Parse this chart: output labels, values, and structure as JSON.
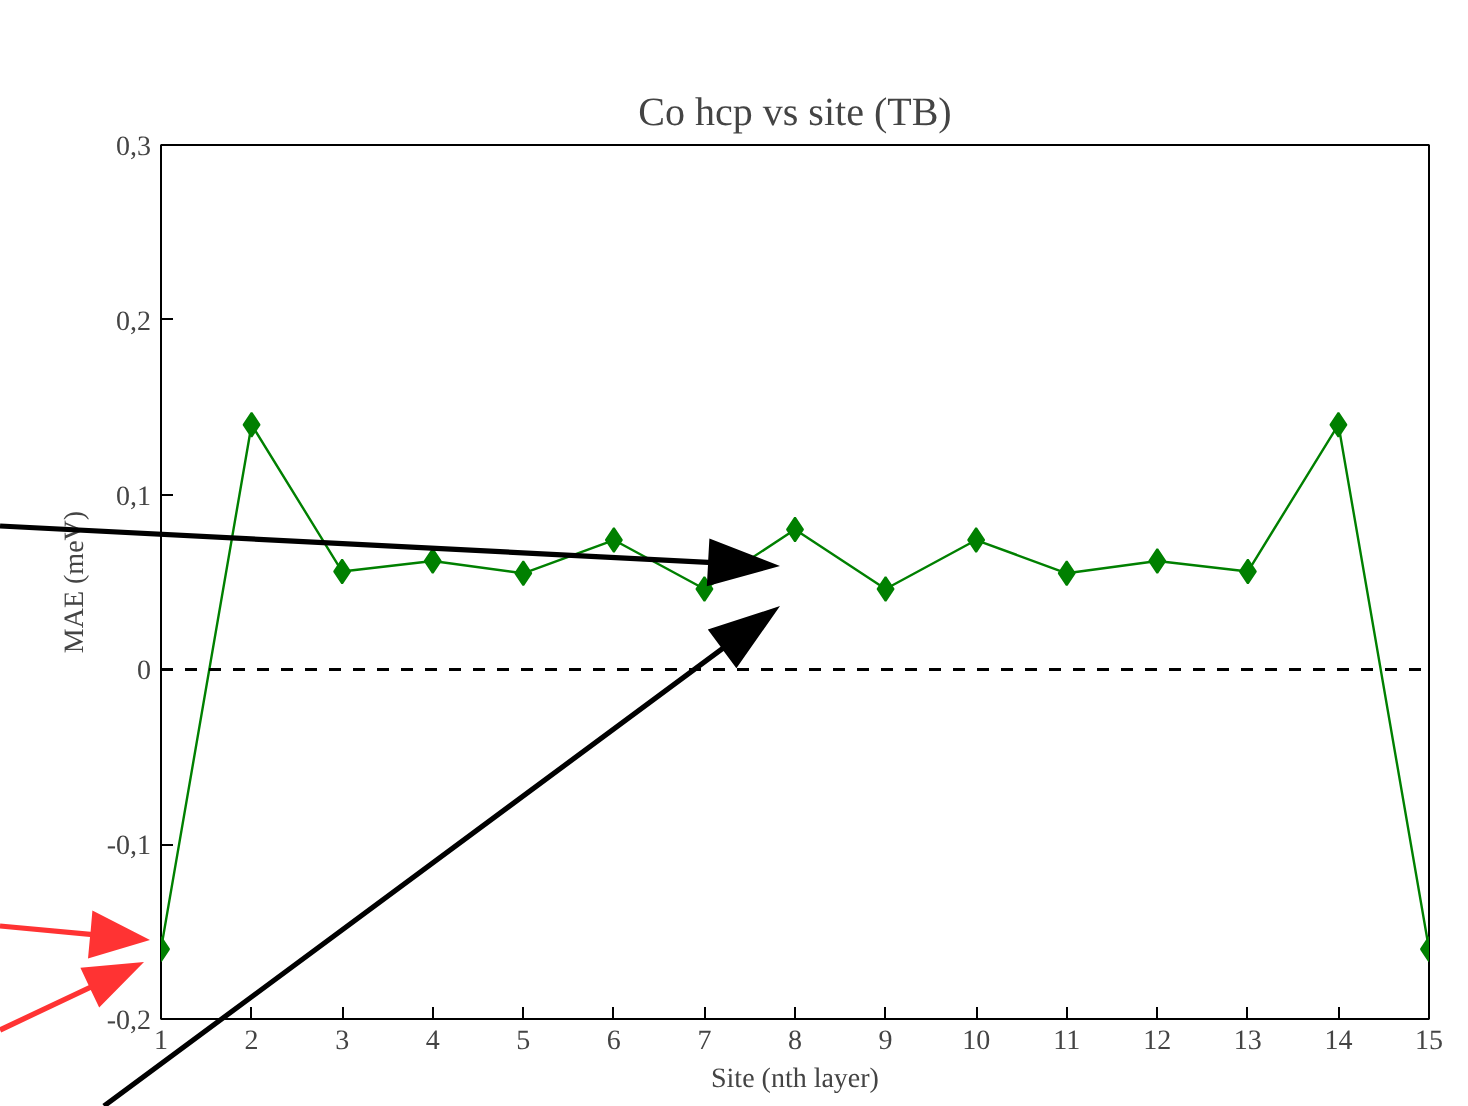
{
  "chart_data": {
    "type": "line",
    "title": "Co hcp vs site (TB)",
    "xlabel": "Site (nth layer)",
    "ylabel": "MAE (meV)",
    "x": [
      1,
      2,
      3,
      4,
      5,
      6,
      7,
      8,
      9,
      10,
      11,
      12,
      13,
      14,
      15
    ],
    "series": [
      {
        "color": "#008000",
        "values": [
          -0.16,
          0.14,
          0.056,
          0.062,
          0.055,
          0.074,
          0.046,
          0.08,
          0.046,
          0.074,
          0.055,
          0.062,
          0.056,
          0.14,
          -0.16
        ]
      }
    ],
    "xlim": [
      1,
      15
    ],
    "xticks": [
      1,
      2,
      3,
      4,
      5,
      6,
      7,
      8,
      9,
      10,
      11,
      12,
      13,
      14,
      15
    ],
    "ylim": [
      -0.2,
      0.3
    ],
    "yticks": [
      {
        "value": -0.2,
        "label": "-0,2"
      },
      {
        "value": -0.1,
        "label": "-0,1"
      },
      {
        "value": 0,
        "label": "0"
      },
      {
        "value": 0.1,
        "label": "0,1"
      },
      {
        "value": 0.2,
        "label": "0,2"
      },
      {
        "value": 0.3,
        "label": "0,3"
      }
    ],
    "ref_lines": [
      {
        "axis": "y",
        "value": 0,
        "color": "#000000",
        "line_style": "dashed"
      }
    ],
    "marker": "diamond",
    "line_style": "solid",
    "grid": false
  }
}
